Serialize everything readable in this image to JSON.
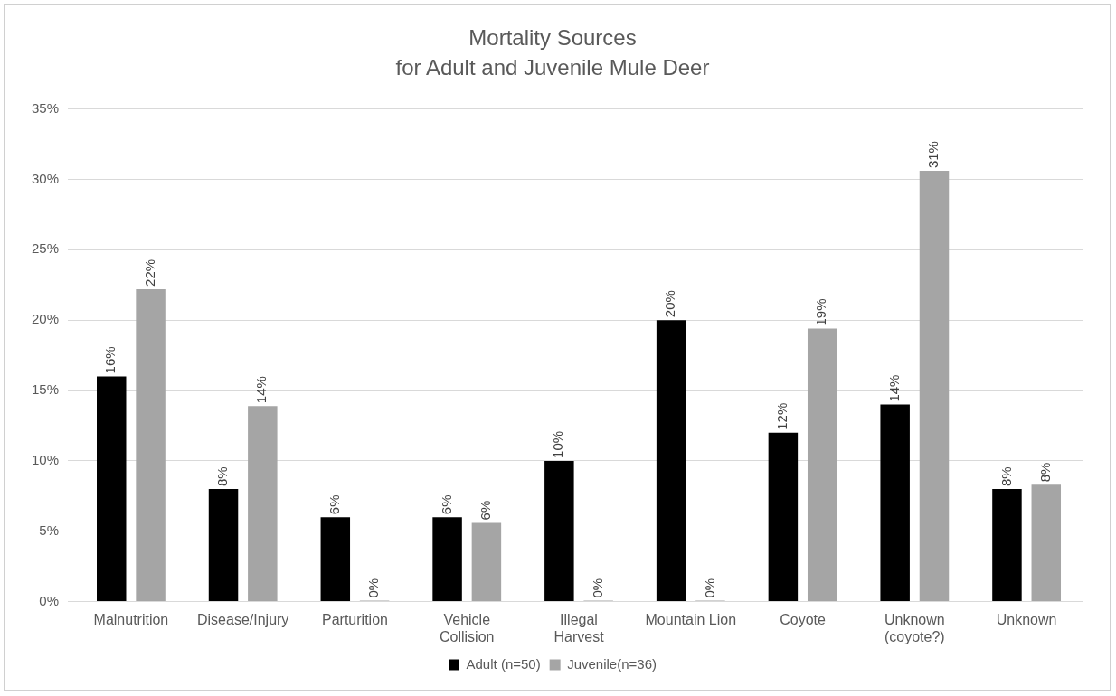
{
  "chart_data": {
    "type": "bar",
    "title": "Mortality Sources",
    "subtitle": "for Adult and Juvenile Mule Deer",
    "categories": [
      "Malnutrition",
      "Disease/Injury",
      "Parturition",
      "Vehicle Collision",
      "Illegal Harvest",
      "Mountain Lion",
      "Coyote",
      "Unknown (coyote?)",
      "Unknown"
    ],
    "series": [
      {
        "name": "Adult (n=50)",
        "color": "#000000",
        "values": [
          16,
          8,
          6,
          6,
          10,
          20,
          12,
          14,
          8
        ],
        "value_labels": [
          "16%",
          "8%",
          "6%",
          "6%",
          "10%",
          "20%",
          "12%",
          "14%",
          "8%"
        ]
      },
      {
        "name": "Juvenile(n=36)",
        "color": "#a5a5a5",
        "values": [
          22.2,
          13.9,
          0,
          5.6,
          0,
          0,
          19.4,
          30.6,
          8.3
        ],
        "value_labels": [
          "22%",
          "14%",
          "0%",
          "6%",
          "0%",
          "0%",
          "19%",
          "31%",
          "8%"
        ]
      }
    ],
    "ylim": [
      0,
      35
    ],
    "yticks": [
      {
        "value": 0,
        "label": "0%"
      },
      {
        "value": 5,
        "label": "5%"
      },
      {
        "value": 10,
        "label": "10%"
      },
      {
        "value": 15,
        "label": "15%"
      },
      {
        "value": 20,
        "label": "20%"
      },
      {
        "value": 25,
        "label": "25%"
      },
      {
        "value": 30,
        "label": "30%"
      },
      {
        "value": 35,
        "label": "35%"
      }
    ],
    "grid": "y",
    "legend": "bottom"
  }
}
